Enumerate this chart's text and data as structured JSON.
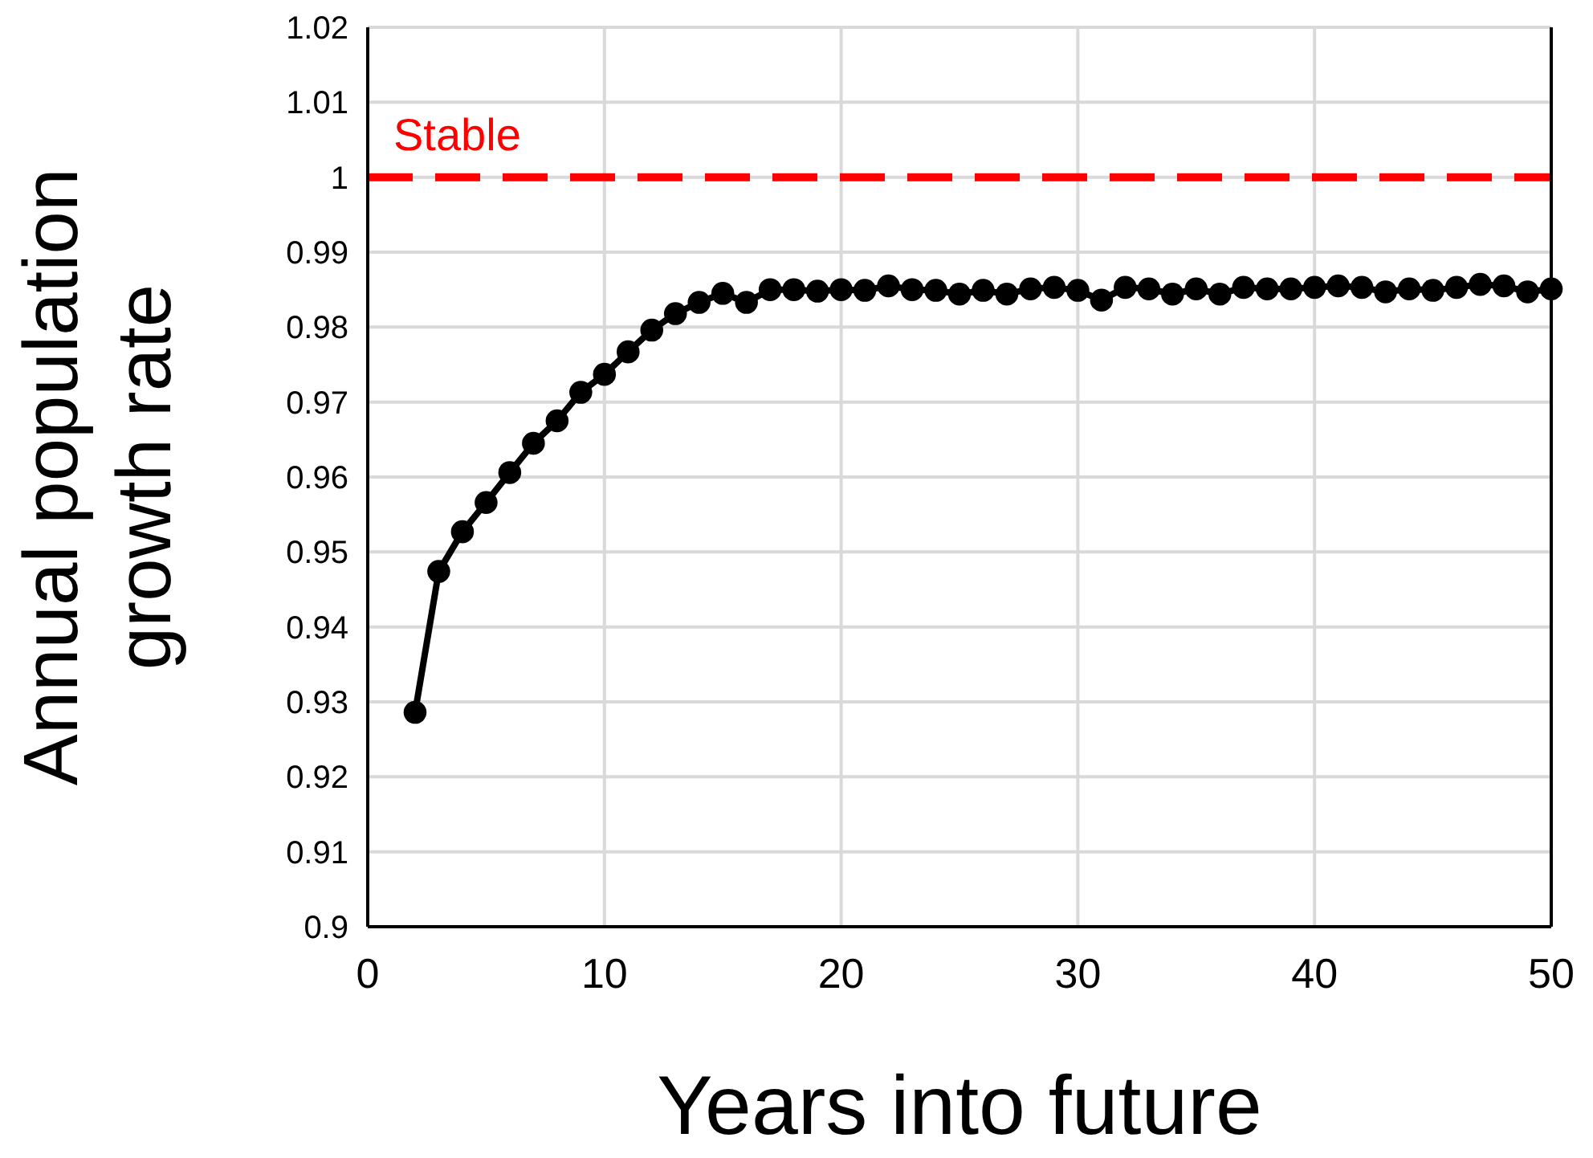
{
  "chart_data": {
    "type": "line",
    "xlabel": "Years into future",
    "ylabel": "Annual population\ngrowth rate",
    "x": [
      2,
      3,
      4,
      5,
      6,
      7,
      8,
      9,
      10,
      11,
      12,
      13,
      14,
      15,
      16,
      17,
      18,
      19,
      20,
      21,
      22,
      23,
      24,
      25,
      26,
      27,
      28,
      29,
      30,
      31,
      32,
      33,
      34,
      35,
      36,
      37,
      38,
      39,
      40,
      41,
      42,
      43,
      44,
      45,
      46,
      47,
      48,
      49,
      50
    ],
    "series": [
      {
        "color": "#000000",
        "values": [
          0.9286,
          0.9474,
          0.9527,
          0.9566,
          0.9606,
          0.9645,
          0.9675,
          0.9713,
          0.9737,
          0.9767,
          0.9796,
          0.9818,
          0.9833,
          0.9845,
          0.9833,
          0.985,
          0.985,
          0.9848,
          0.985,
          0.9849,
          0.9855,
          0.985,
          0.9849,
          0.9844,
          0.9849,
          0.9844,
          0.9851,
          0.9853,
          0.9849,
          0.9836,
          0.9853,
          0.9851,
          0.9844,
          0.9851,
          0.9844,
          0.9853,
          0.9851,
          0.9851,
          0.9853,
          0.9855,
          0.9853,
          0.9847,
          0.9851,
          0.9849,
          0.9853,
          0.9857,
          0.9855,
          0.9847,
          0.9851
        ]
      }
    ],
    "xlim": [
      0,
      50
    ],
    "xticks": [
      0,
      10,
      20,
      30,
      40,
      50
    ],
    "ylim": [
      0.9,
      1.02
    ],
    "yticks": [
      0.9,
      0.91,
      0.92,
      0.93,
      0.94,
      0.95,
      0.96,
      0.97,
      0.98,
      0.99,
      1,
      1.01,
      1.02
    ],
    "grid": true,
    "marker": "circle",
    "line_style": "solid",
    "ref_lines": [
      {
        "axis": "y",
        "value": 1,
        "label": "Stable",
        "color": "#ff0000",
        "line_style": "dashed"
      }
    ]
  }
}
